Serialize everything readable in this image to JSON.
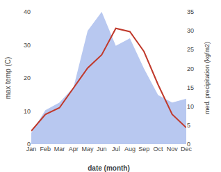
{
  "chart_data": {
    "type": "line",
    "categories": [
      "Jan",
      "Feb",
      "Mar",
      "Apr",
      "May",
      "Jun",
      "Jul",
      "Aug",
      "Sep",
      "Oct",
      "Nov",
      "Dec"
    ],
    "series": [
      {
        "type": "area",
        "color": "#b8c8f0",
        "axis": "y2",
        "values": [
          3,
          9,
          11,
          15,
          30,
          35,
          26,
          28,
          20,
          13,
          11,
          12
        ]
      },
      {
        "type": "line",
        "color": "#c0392b",
        "values": [
          4,
          9,
          11,
          17,
          23,
          27,
          35,
          34,
          28,
          18,
          9,
          5
        ]
      }
    ],
    "xlabel": "date (month)",
    "ylabel": "max temp (C)",
    "y2label": "med. precipitation (kg/m2)",
    "ylim": [
      0,
      40
    ],
    "yticks": [
      0,
      10,
      20,
      30,
      40
    ],
    "y2lim": [
      0,
      35
    ],
    "y2ticks": [
      0,
      5,
      10,
      15,
      20,
      25,
      30,
      35
    ],
    "grid": false
  }
}
